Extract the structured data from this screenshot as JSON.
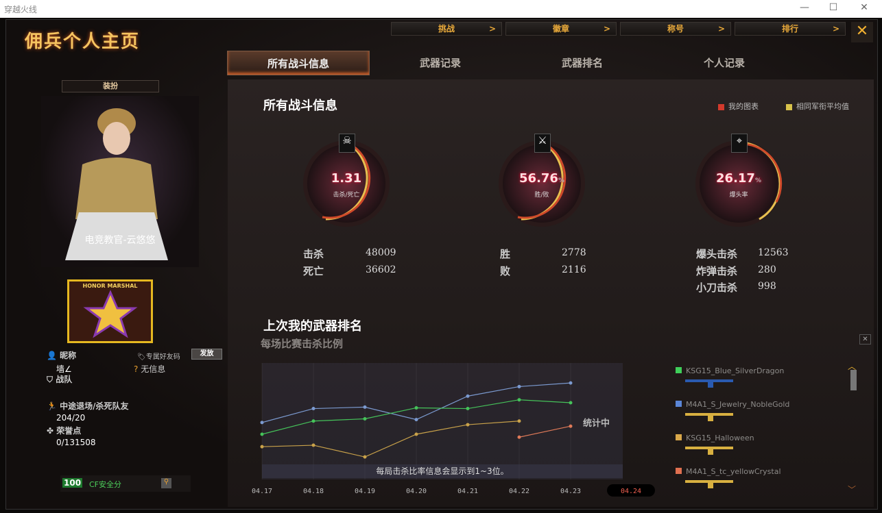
{
  "window": {
    "title": "穿越火线",
    "minimize": "—",
    "maximize": "☐",
    "close": "✕"
  },
  "app_title": "佣兵个人主页",
  "top_nav": [
    {
      "label": "挑战"
    },
    {
      "label": "徽章"
    },
    {
      "label": "称号"
    },
    {
      "label": "排行"
    }
  ],
  "chevron": ">",
  "close_label": "✕",
  "tabs": [
    {
      "label": "所有战斗信息",
      "active": true
    },
    {
      "label": "武器记录"
    },
    {
      "label": "武器排名"
    },
    {
      "label": "个人记录"
    }
  ],
  "profile": {
    "outfit_button": "装扮",
    "character_name": "电竞教官-云悠悠",
    "rank_badge": "HONOR MARSHAL",
    "nickname_label": "昵称",
    "nickname": "墙∠",
    "friend_code_label": "专属好友码",
    "friend_code_button": "发放",
    "friend_code_value": "无信息",
    "team_label": "战队",
    "quit_label": "中途退场/杀死队友",
    "quit_value": "204/20",
    "honor_label": "荣誉点",
    "honor_value": "0/131508",
    "security_score": "100",
    "security_label": "CF安全分"
  },
  "battle": {
    "title": "所有战斗信息",
    "legend": [
      {
        "label": "我的图表",
        "color": "#d33a2c"
      },
      {
        "label": "相同军衔平均值",
        "color": "#d8c24a"
      }
    ],
    "gauges": [
      {
        "icon": "skull-icon",
        "value": "1.31",
        "unit": "",
        "label": "击杀/死亡"
      },
      {
        "icon": "crossed-swords-icon",
        "value": "56.76",
        "unit": "%",
        "label": "胜/败"
      },
      {
        "icon": "crosshair-icon",
        "value": "26.17",
        "unit": "%",
        "label": "爆头率"
      }
    ],
    "stats": [
      [
        {
          "label": "击杀",
          "value": "48009"
        },
        {
          "label": "死亡",
          "value": "36602"
        }
      ],
      [
        {
          "label": "胜",
          "value": "2778"
        },
        {
          "label": "败",
          "value": "2116"
        }
      ],
      [
        {
          "label": "爆头击杀",
          "value": "12563"
        },
        {
          "label": "炸弹击杀",
          "value": "280"
        },
        {
          "label": "小刀击杀",
          "value": "998"
        }
      ]
    ]
  },
  "weapon_rank": {
    "title": "上次我的武器排名",
    "subtitle": "每场比赛击杀比例",
    "counting": "统计中",
    "note": "每局击杀比率信息会显示到1~3位。",
    "close": "✕",
    "weapons": [
      {
        "name": "KSG15_Blue_SilverDragon",
        "color": "#3fcf5a"
      },
      {
        "name": "M4A1_S_Jewelry_NobleGold",
        "color": "#5b86d6"
      },
      {
        "name": "KSG15_Halloween",
        "color": "#d9a84a"
      },
      {
        "name": "M4A1_S_tc_yellowCrystal",
        "color": "#e07050"
      }
    ]
  },
  "chart_data": {
    "type": "line",
    "categories": [
      "04.17",
      "04.18",
      "04.19",
      "04.20",
      "04.21",
      "04.22",
      "04.23",
      "04.24"
    ],
    "highlight_category": "04.24",
    "grid": true,
    "y_axis_shown": false,
    "series": [
      {
        "name": "M4A1_S_Jewelry_NobleGold",
        "color": "#7b9ad0",
        "values": [
          0.59,
          0.78,
          0.8,
          0.63,
          0.95,
          1.08,
          1.13,
          null
        ]
      },
      {
        "name": "KSG15_Blue_SilverDragon",
        "color": "#45c35a",
        "values": [
          0.43,
          0.61,
          0.64,
          0.79,
          0.78,
          0.9,
          0.86,
          null
        ]
      },
      {
        "name": "KSG15_Halloween",
        "color": "#c9a24a",
        "values": [
          0.26,
          0.28,
          0.12,
          0.43,
          0.56,
          0.61,
          null,
          null
        ]
      },
      {
        "name": "M4A1_S_tc_yellowCrystal",
        "color": "#e07a58",
        "values": [
          null,
          null,
          null,
          null,
          null,
          0.39,
          0.54,
          null
        ]
      }
    ]
  }
}
